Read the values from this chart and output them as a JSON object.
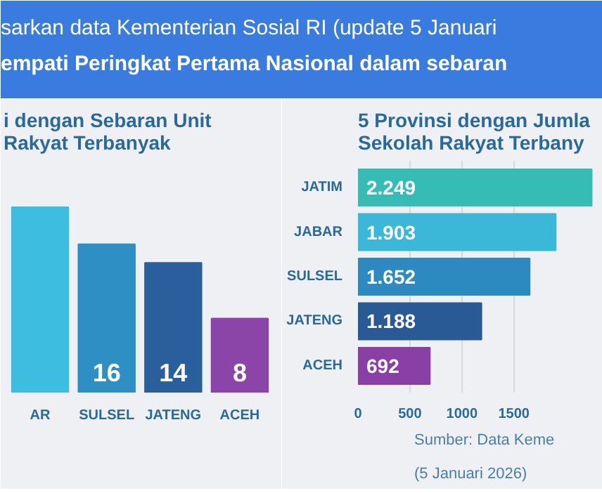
{
  "chart_data": [
    {
      "type": "other",
      "annotations": [
        "sarkan data Kementerian Sosial RI (update 5 Januari",
        "empati Peringkat Pertama Nasional dalam sebaran"
      ]
    },
    {
      "type": "bar",
      "title": "i dengan Sebaran Unit\nRakyat Terbanyak",
      "categories": [
        "AR",
        "SULSEL",
        "JATENG",
        "ACEH"
      ],
      "values": [
        20,
        16,
        14,
        8
      ],
      "value_labels": [
        null,
        "16",
        "14",
        "8"
      ],
      "colors": [
        "#3dbde0",
        "#2d8fc4",
        "#2a5f9e",
        "#8b44a8"
      ]
    },
    {
      "type": "bar",
      "orientation": "horizontal",
      "title": "5 Provinsi dengan Jumla\nSekolah Rakyat Terbany",
      "categories": [
        "JATIM",
        "JABAR",
        "SULSEL",
        "JATENG",
        "ACEH"
      ],
      "values": [
        2249,
        1903,
        1652,
        1188,
        692
      ],
      "value_labels": [
        "2.249",
        "1.903",
        "1.652",
        "1.188",
        "692"
      ],
      "colors": [
        "#35bdb5",
        "#3bb8d8",
        "#2d8ac0",
        "#2a5a96",
        "#8a3fa6"
      ],
      "xlim": [
        0,
        2300
      ],
      "xticks": [
        0,
        500,
        1000,
        1500
      ],
      "grid": "x",
      "annotations": [
        "Sumber: Data Keme",
        "(5 Januari 2026)"
      ]
    }
  ]
}
